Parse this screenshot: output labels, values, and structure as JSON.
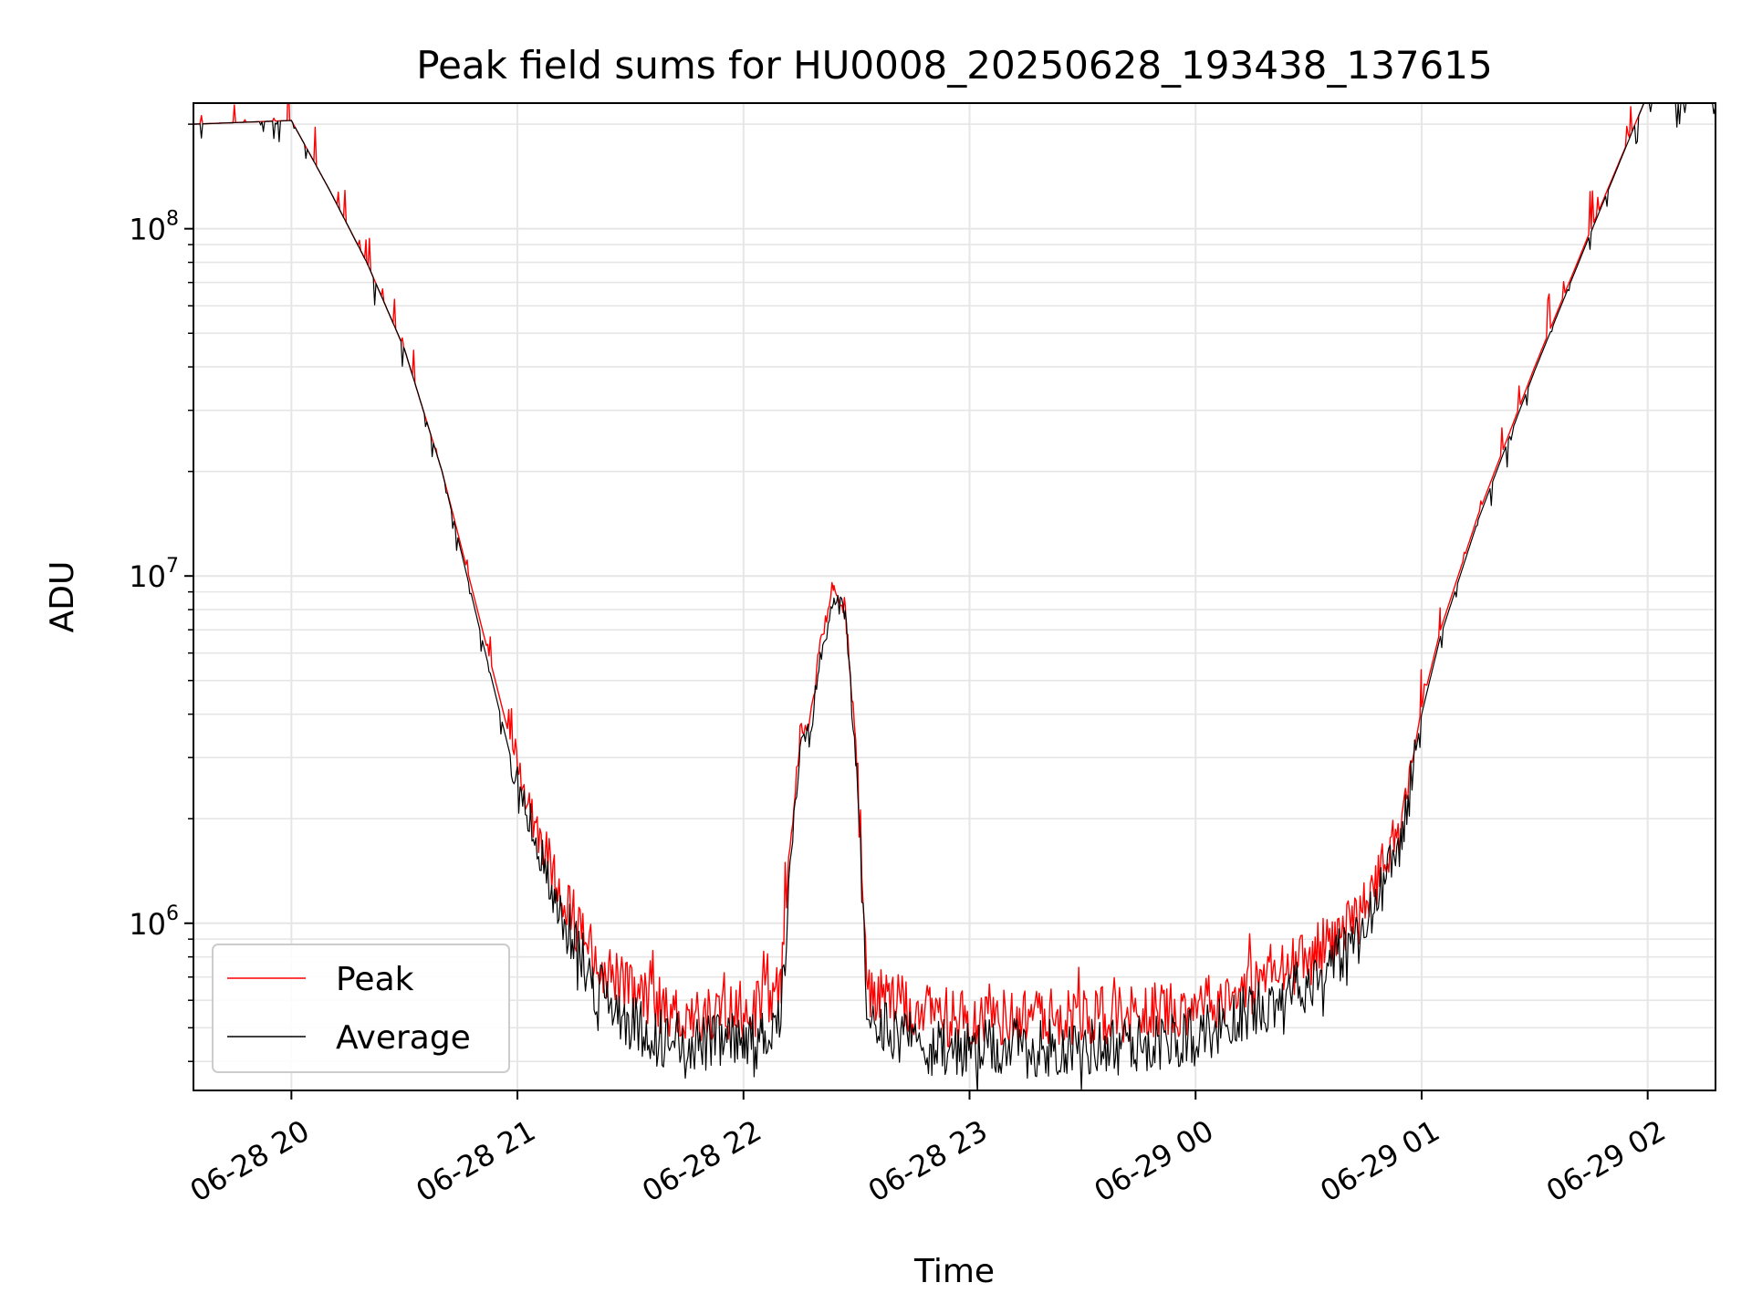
{
  "chart_data": {
    "type": "line",
    "title": "Peak field sums for HU0008_20250628_193438_137615",
    "xlabel": "Time",
    "ylabel": "ADU",
    "x_ticks": [
      "06-28 20",
      "06-28 21",
      "06-28 22",
      "06-28 23",
      "06-29 00",
      "06-29 01",
      "06-29 02"
    ],
    "y_ticks": [
      {
        "base": "10",
        "exp": "6",
        "value": 1000000
      },
      {
        "base": "10",
        "exp": "7",
        "value": 10000000
      },
      {
        "base": "10",
        "exp": "8",
        "value": 100000000
      }
    ],
    "xlim": [
      "2025-06-28 19:34",
      "2025-06-29 02:18"
    ],
    "ylim": [
      330000,
      230000000
    ],
    "y_scale": "log",
    "grid": true,
    "legend_position": "lower-left",
    "series": [
      {
        "name": "Peak",
        "color": "#ff0000",
        "points": [
          [
            "19:34",
            200000000
          ],
          [
            "20:00",
            205000000
          ],
          [
            "20:10",
            130000000
          ],
          [
            "20:20",
            80000000
          ],
          [
            "20:30",
            45000000
          ],
          [
            "20:40",
            20000000
          ],
          [
            "20:50",
            7500000
          ],
          [
            "21:00",
            2800000
          ],
          [
            "21:10",
            1350000
          ],
          [
            "21:20",
            800000
          ],
          [
            "21:30",
            630000
          ],
          [
            "21:40",
            550000
          ],
          [
            "21:50",
            540000
          ],
          [
            "22:00",
            560000
          ],
          [
            "22:05",
            580000
          ],
          [
            "22:10",
            650000
          ],
          [
            "22:12",
            1500000
          ],
          [
            "22:15",
            3500000
          ],
          [
            "22:18",
            4000000
          ],
          [
            "22:20",
            6000000
          ],
          [
            "22:24",
            9200000
          ],
          [
            "22:27",
            8200000
          ],
          [
            "22:30",
            3000000
          ],
          [
            "22:32",
            1000000
          ],
          [
            "22:33",
            640000
          ],
          [
            "22:40",
            590000
          ],
          [
            "22:50",
            540000
          ],
          [
            "23:00",
            530000
          ],
          [
            "23:15",
            540000
          ],
          [
            "23:30",
            540000
          ],
          [
            "23:45",
            550000
          ],
          [
            "00:00",
            580000
          ],
          [
            "00:15",
            660000
          ],
          [
            "00:30",
            790000
          ],
          [
            "00:45",
            1100000
          ],
          [
            "00:55",
            2000000
          ],
          [
            "01:00",
            4200000
          ],
          [
            "01:05",
            7000000
          ],
          [
            "01:15",
            15000000
          ],
          [
            "01:30",
            40000000
          ],
          [
            "01:45",
            100000000
          ],
          [
            "01:59",
            230000000
          ],
          [
            "02:18",
            230000000
          ]
        ]
      },
      {
        "name": "Average",
        "color": "#000000",
        "points": [
          [
            "19:34",
            200000000
          ],
          [
            "20:00",
            205000000
          ],
          [
            "20:10",
            130000000
          ],
          [
            "20:20",
            80000000
          ],
          [
            "20:30",
            45000000
          ],
          [
            "20:40",
            20000000
          ],
          [
            "20:50",
            7000000
          ],
          [
            "21:00",
            2500000
          ],
          [
            "21:10",
            1150000
          ],
          [
            "21:20",
            680000
          ],
          [
            "21:30",
            520000
          ],
          [
            "21:40",
            460000
          ],
          [
            "21:50",
            450000
          ],
          [
            "22:00",
            460000
          ],
          [
            "22:05",
            470000
          ],
          [
            "22:10",
            550000
          ],
          [
            "22:12",
            1300000
          ],
          [
            "22:15",
            3200000
          ],
          [
            "22:18",
            3700000
          ],
          [
            "22:20",
            5500000
          ],
          [
            "22:24",
            8800000
          ],
          [
            "22:27",
            7800000
          ],
          [
            "22:30",
            2800000
          ],
          [
            "22:32",
            900000
          ],
          [
            "22:33",
            530000
          ],
          [
            "22:40",
            490000
          ],
          [
            "22:50",
            440000
          ],
          [
            "23:00",
            430000
          ],
          [
            "23:15",
            440000
          ],
          [
            "23:30",
            440000
          ],
          [
            "23:45",
            450000
          ],
          [
            "00:00",
            470000
          ],
          [
            "00:15",
            560000
          ],
          [
            "00:30",
            680000
          ],
          [
            "00:45",
            950000
          ],
          [
            "00:55",
            1800000
          ],
          [
            "01:00",
            4000000
          ],
          [
            "01:05",
            6700000
          ],
          [
            "01:15",
            14500000
          ],
          [
            "01:30",
            39000000
          ],
          [
            "01:45",
            98000000
          ],
          [
            "01:59",
            230000000
          ],
          [
            "02:18",
            230000000
          ]
        ]
      }
    ]
  }
}
